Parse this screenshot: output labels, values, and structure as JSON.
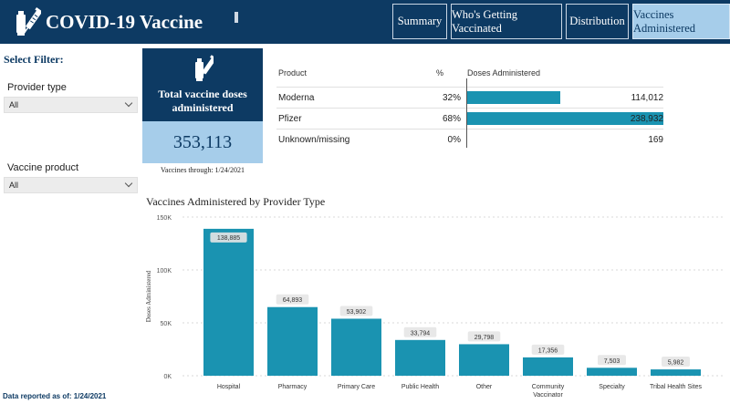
{
  "header": {
    "title": "COVID-19 Vaccine",
    "tabs": [
      {
        "label": "Summary"
      },
      {
        "label": "Who's Getting Vaccinated"
      },
      {
        "label": "Distribution"
      },
      {
        "label": "Vaccines Administered",
        "active": true
      }
    ]
  },
  "filters": {
    "title": "Select Filter:",
    "provider_type": {
      "label": "Provider type",
      "value": "All"
    },
    "vaccine_product": {
      "label": "Vaccine product",
      "value": "All"
    }
  },
  "kpi": {
    "label_line1": "Total vaccine doses",
    "label_line2": "administered",
    "value": "353,113",
    "note": "Vaccines through: 1/24/2021"
  },
  "product_table": {
    "headers": {
      "product": "Product",
      "pct": "%",
      "doses": "Doses Administered"
    },
    "rows": [
      {
        "product": "Moderna",
        "pct": "32%",
        "doses": "114,012",
        "value": 114012
      },
      {
        "product": "Pfizer",
        "pct": "68%",
        "doses": "238,932",
        "value": 238932
      },
      {
        "product": "Unknown/missing",
        "pct": "0%",
        "doses": "169",
        "value": 169
      }
    ]
  },
  "chart_title": "Vaccines Administered by Provider Type",
  "chart_data": {
    "type": "bar",
    "ylabel": "Doses Administered",
    "ylim": [
      0,
      150000
    ],
    "yticks": [
      0,
      50000,
      100000,
      150000
    ],
    "ytick_labels": [
      "0K",
      "50K",
      "100K",
      "150K"
    ],
    "grid": true,
    "color": "#1a93b1",
    "categories": [
      "Hospital",
      "Pharmacy",
      "Primary Care",
      "Public Health",
      "Other",
      "Community Vaccinator",
      "Specialty",
      "Tribal Health Sites"
    ],
    "values": [
      138885,
      64893,
      53902,
      33794,
      29798,
      17356,
      7503,
      5982
    ],
    "data_labels": [
      "138,885",
      "64,893",
      "53,902",
      "33,794",
      "29,798",
      "17,356",
      "7,503",
      "5,982"
    ]
  },
  "footer": "Data reported as of: 1/24/2021",
  "colors": {
    "navy": "#0d3a63",
    "light_blue": "#a6cdea",
    "bar": "#1a93b1"
  },
  "icons": {
    "logo": "vaccine-syringe-icon",
    "kpi": "vaccine-syringe-icon"
  }
}
